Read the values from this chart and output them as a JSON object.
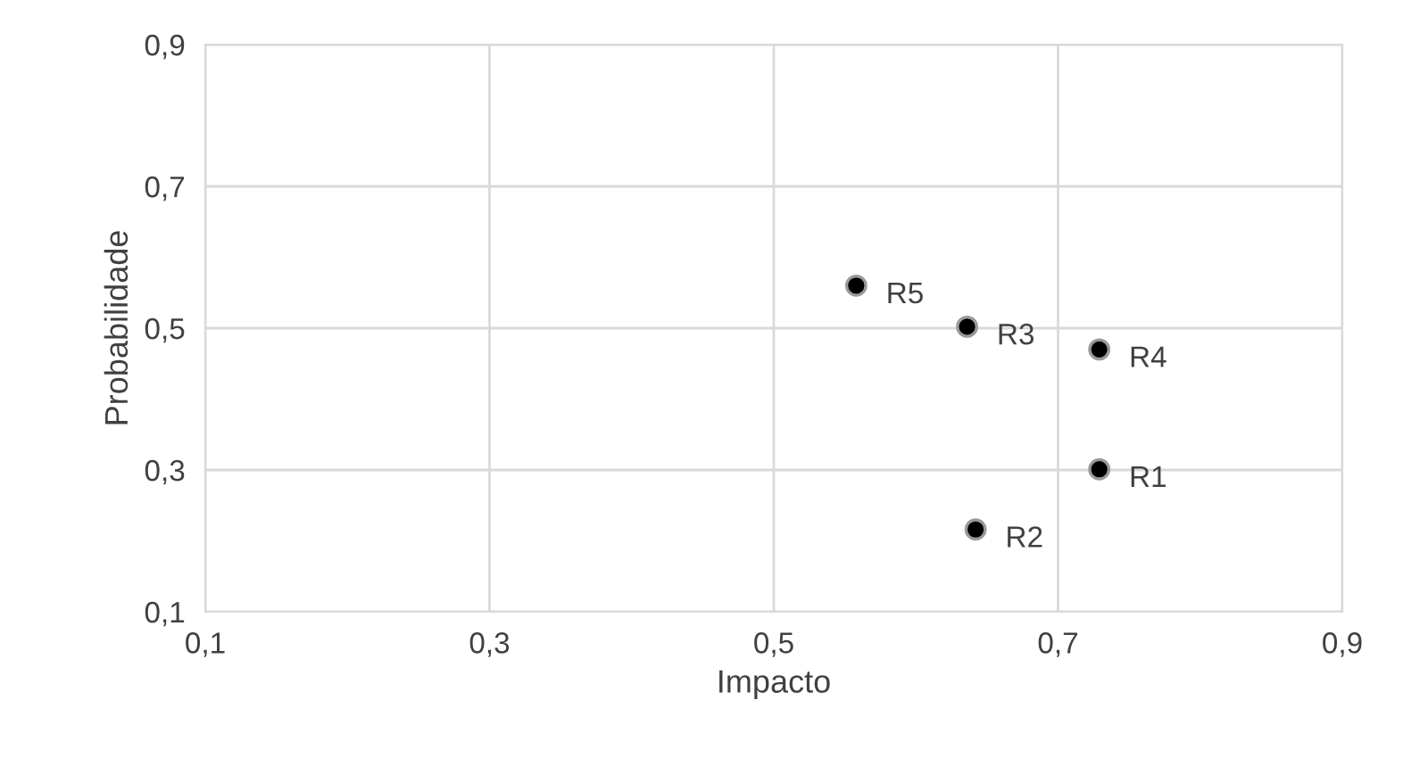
{
  "chart_data": {
    "type": "scatter",
    "xlabel": "Impacto",
    "ylabel": "Probabilidade",
    "x": [
      0.729,
      0.642,
      0.636,
      0.729,
      0.558
    ],
    "series": [
      {
        "color": "#000000",
        "values": [
          0.301,
          0.216,
          0.502,
          0.47,
          0.56
        ]
      }
    ],
    "annotations": [
      {
        "text": "R1",
        "x": 0.729,
        "y": 0.301
      },
      {
        "text": "R2",
        "x": 0.642,
        "y": 0.216
      },
      {
        "text": "R3",
        "x": 0.636,
        "y": 0.502
      },
      {
        "text": "R4",
        "x": 0.729,
        "y": 0.47
      },
      {
        "text": "R5",
        "x": 0.558,
        "y": 0.56
      }
    ],
    "xlim": [
      0.1,
      0.9
    ],
    "ylim": [
      0.1,
      0.9
    ],
    "xticks": [
      {
        "value": 0.1,
        "label": "0,1"
      },
      {
        "value": 0.3,
        "label": "0,3"
      },
      {
        "value": 0.5,
        "label": "0,5"
      },
      {
        "value": 0.7,
        "label": "0,7"
      },
      {
        "value": 0.9,
        "label": "0,9"
      }
    ],
    "yticks": [
      {
        "value": 0.1,
        "label": "0,1"
      },
      {
        "value": 0.3,
        "label": "0,3"
      },
      {
        "value": 0.5,
        "label": "0,5"
      },
      {
        "value": 0.7,
        "label": "0,7"
      },
      {
        "value": 0.9,
        "label": "0,9"
      }
    ],
    "grid": true,
    "marker": "circle"
  }
}
